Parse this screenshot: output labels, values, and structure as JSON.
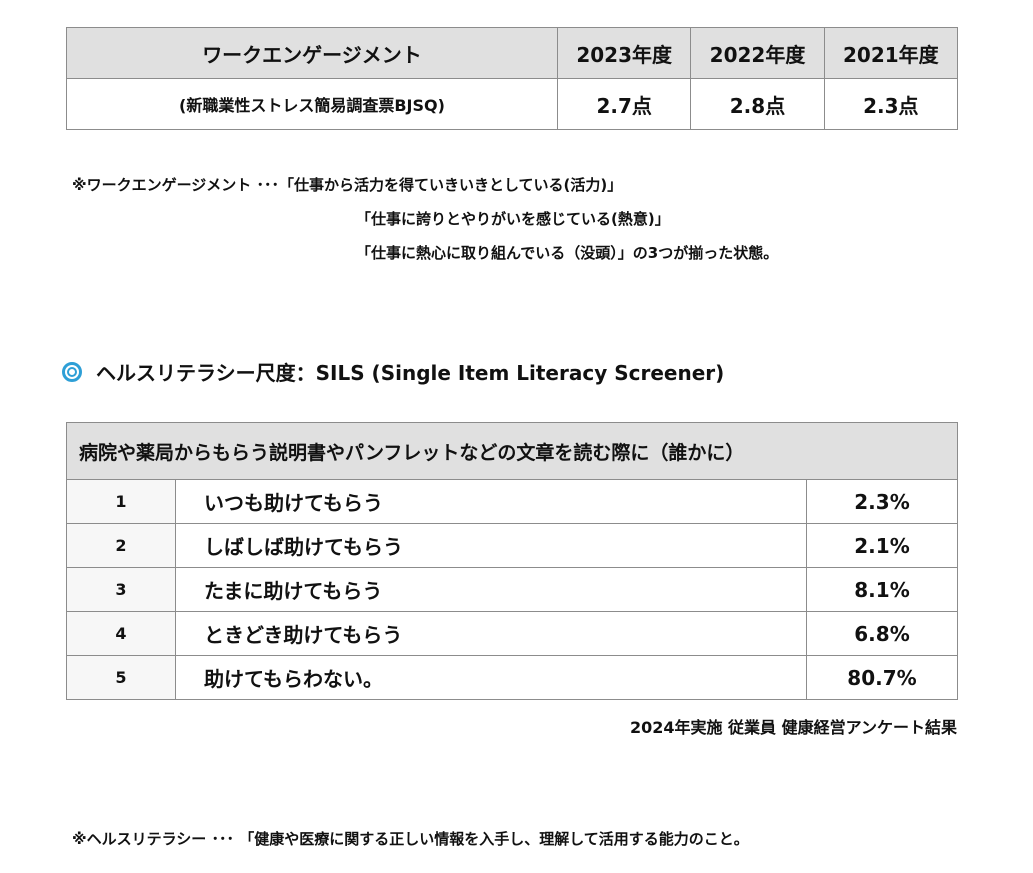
{
  "work_engagement": {
    "header": {
      "label": "ワークエンゲージメント",
      "years": [
        "2023年度",
        "2022年度",
        "2021年度"
      ]
    },
    "row": {
      "label": "(新職業性ストレス簡易調査票BJSQ)",
      "values": [
        "2.7点",
        "2.8点",
        "2.3点"
      ]
    }
  },
  "we_notes": [
    "※ワークエンゲージメント ･･･「仕事から活力を得ていきいきとしている(活力)」",
    "「仕事に誇りとやりがいを感じている(熱意)」",
    "「仕事に熱心に取り組んでいる（没頭）」の3つが揃った状態。"
  ],
  "sils": {
    "icon": "double-circle-icon",
    "icon_color": "#2e9fd6",
    "heading": "ヘルスリテラシー尺度：SILS (Single Item Literacy Screener)",
    "question": "病院や薬局からもらう説明書やパンフレットなどの文章を読む際に（誰かに）",
    "rows": [
      {
        "num": "1",
        "answer": "いつも助けてもらう",
        "pct": "2.3%"
      },
      {
        "num": "2",
        "answer": "しばしば助けてもらう",
        "pct": "2.1%"
      },
      {
        "num": "3",
        "answer": "たまに助けてもらう",
        "pct": "8.1%"
      },
      {
        "num": "4",
        "answer": "ときどき助けてもらう",
        "pct": "6.8%"
      },
      {
        "num": "5",
        "answer": "助けてもらわない。",
        "pct": "80.7%"
      }
    ]
  },
  "source": "2024年実施 従業員 健康経営アンケート結果",
  "footnote": "※ヘルスリテラシー ･･･ 「健康や医療に関する正しい情報を入手し、理解して活用する能力のこと。"
}
